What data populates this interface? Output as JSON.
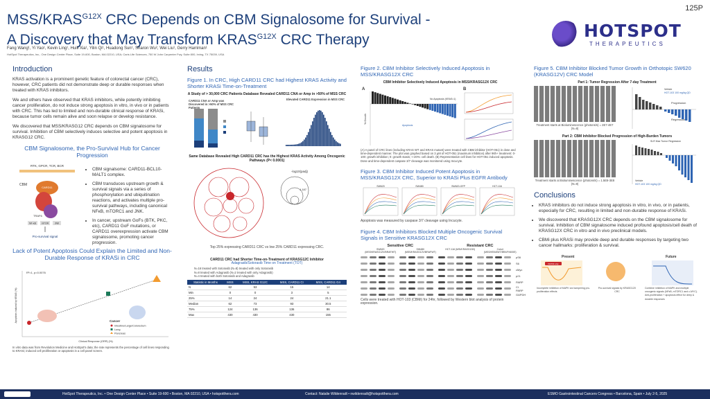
{
  "poster_id": "125P",
  "title": {
    "line1_a": "MSS/KRAS",
    "line1_sup": "G12X",
    "line1_b": " CRC Depends on CBM Signalosome for Survival -",
    "line2_a": "A Discovery that May Transform KRAS",
    "line2_sup": "G12X",
    "line2_b": " CRC Therapy"
  },
  "authors": "Fang Wang¹, Yi Yao¹, Kevin Ling¹, Huili Xia¹, Yilin Qi¹, Huadong Sun¹, Sharon Wu², Wei Liu¹, Gerry Harriman¹",
  "affiliation": "HotSpot Therapeutics, Inc., One Design Center Place, Suite 19-600, Boston, MA 02210, USA; Caris Life Sciences, 750 W John Carpenter Fwy, Suite 800, Irving, TX 75039, USA",
  "logo": {
    "word": "HOTSPOT",
    "sub": "THERAPEUTICS"
  },
  "intro": {
    "heading": "Introduction",
    "p1": "KRAS activation is a prominent genetic feature of colorectal cancer (CRC), however, CRC patients did not demonstrate deep or durable responses when treated with KRAS inhibitors.",
    "p2": "We and others have observed that KRAS inhibitors, while potently inhibiting cancer proliferation, do not induce strong apoptosis in vitro, in vivo or in patients with CRC. This has led to limited and non-durable clinical response of KRASi, because tumor cells remain alive and soon relapse or develop resistance.",
    "p3": "We discovered that MSS/KRASG12 CRC depends on CBM signalosome for survival. Inhibition of CBM selectively induces selective and potent apoptosis in KRASG12 CRC."
  },
  "cbm": {
    "heading": "CBM Signalosome, the Pro-Survival Hub for Cancer Progression",
    "receptors": "RTK, GPCR, TCR, BCR",
    "labels": [
      "CBM",
      "CARD11",
      "BCL10",
      "MALT1",
      "TRAF6",
      "NF-κB",
      "mTOR",
      "JNK"
    ],
    "footer": "Pro-survival signal",
    "bullets": [
      "CBM signalsome: CARD11-BCL10-MALT1 complex.",
      "CBM transduces upstream growth & survival signals via a series of phosphorylation and ubiquitination reactions, and activates multiple pro-survival pathways, including canonical NFκB, mTORC1 and JNK.",
      "In cancer, upstream GoFs (BTK, PKC, etc), CARD11 GoF mutations, or CARD11 overexpression activate CBM signalosome, promoting cancer progression."
    ]
  },
  "lack": {
    "heading": "Lack of Potent Apoptosis Could Explain the Limited and Non-Durable Response of KRASi in CRC",
    "stat": "R²=1, p=0.0076",
    "ylabel": "Apoptosis induced by KRASi (%)",
    "xlabel": "Clinical Response (ORR) (%)",
    "legend_title": "Cancer",
    "legend": [
      "Intestine/Large/Colorectum",
      "Lung",
      "Pancreas"
    ],
    "caption": "In vitro data was from Revolution Medicine and HotSpot's data; the rate represents the percentage of cell lines responding to KRASi; induced cell proliferation or apoptosis in a cell panel screen."
  },
  "results": {
    "heading": "Results",
    "fig1_title": "Figure 1. In CRC, High CARD11 CRC had Highest KRAS Activity and Shorter KRASi Time-on-Treatment",
    "fig1_panel_title": "A Study of > 30,000 CRC Patients Database Revealed CARD11 CNA or Amp in >50% of MSS CRC",
    "fig1_a": "CARD11 CNA or Amp was Discovered in >50% of MSS CRC Patients",
    "fig1_b": "Elevated CARD11 Expression in MSS CRC",
    "fig1_bubble_title": "Same Database Revealed High CARD11 CRC has the Highest KRAS Activity Among Oncogenic Pathways (P< 0.0001)",
    "bubble_label": "-log10(padj)",
    "bubble_values": [
      "4.187"
    ],
    "bubble_caption": "Top 25% expressing CARD11 CRC vs low 25% CARD11 expressing CRC.",
    "table_title": "CARD11 CRC had Shorter Time-on-Treatment of KRASG12C Inhibitor",
    "table_sub": "Adagrasib/Sotorasib Time on Treatment (TOT)",
    "table_notes": [
      "N=16 treated with Sotorasib (N=8) treated with only Sotorasib",
      "N=8 treated with Adagrasib (N=2 treated with only Adagrasib)",
      "N=4 treated with both Sotorasib and Adagrasib"
    ],
    "table_headers": [
      "Statistic in Months",
      "MSS",
      "MSS, KRAS G12C",
      "MSS, CARD11 CI",
      "MSS, CARD11 G4"
    ],
    "table_rows": [
      [
        "N",
        "62",
        "53",
        "15",
        "14"
      ],
      [
        "Min",
        "0",
        "0",
        "3",
        "5"
      ],
      [
        "25%",
        "14",
        "24",
        "24",
        "21.1"
      ],
      [
        "Median",
        "62",
        "73",
        "93",
        "30.5"
      ],
      [
        "75%",
        "124",
        "136",
        "136",
        "86"
      ],
      [
        "Max",
        "430",
        "430",
        "430",
        "155"
      ]
    ]
  },
  "fig2": {
    "title": "Figure 2. CBM Inhibitor Selectively Induced Apoptosis in MSS/KRASG12X CRC",
    "panel_title": "CBM Inhibitor Selectively Induced Apoptosis in MSS/KRASG12X CRC",
    "ylabel": "% Growth",
    "legend": [
      "No Apoptosis (KRAS=1)",
      "Apoptosis"
    ],
    "panel_a": "A",
    "panel_b": "B",
    "caption": "(A) A panel of CRC lines (including KRAS WT and KRAS mutant) were treated with CBM inhibitor (HOT-051) in dose and time-dependent manner. The plot was graphed based on 3 µM of HOT-051 (maximum inhibition) after 96h+ treatment: 0-100: growth inhibition; 0: growth stasis; <-20%: cell death. (B) Representative cell lines for HOT-051 induced apoptosis. Dose and time-dependent caspase 3/7 cleavage was monitored using Incucyte."
  },
  "fig3": {
    "title": "Figure 3. CBM Inhibitor Induced Potent Apoptosis in MSS/KRASG12X CRC, Superior to KRASi Plus EGFR Antibody",
    "cells": [
      "SW620",
      "SW480",
      "SW620-GFP",
      "HCT-116"
    ],
    "caption": "Apoptosis was measured by caspase 3/7 cleavage using Incucyte."
  },
  "fig4": {
    "title": "Figure 4. CBM Inhibitors Blocked Multiple Oncogenic Survival Signals in Sensitive KRASG12X CRC",
    "groups": [
      "Sensitive CRC",
      "Resistant CRC"
    ],
    "cell_lines": [
      "SW620 (MSS/KRASG12V/BRAFWT)",
      "SW480 (MSS/KRASG12V/BRAFWT)",
      "HCT-116 (MSI/KRASG13D)",
      "Colo4 (MSS/KRASWT/BRAFV600E)"
    ],
    "blots": [
      "pS6",
      "S6",
      "cMyc",
      "p21",
      "PARP",
      "Cl. PARP",
      "GAPDH"
    ],
    "caption": "Cells were treated with HOT-103 (CBMi) for 24hr, followed by Western blot analysis of protein expression."
  },
  "fig5": {
    "title": "Figure 5. CBM Inhibitor Blocked Tumor Growth in Orthotopic SW620 (KRASG12V) CRC Model",
    "part1": "Part 1: Tumor Regression After 7-day Treatment",
    "part1_legend": [
      "Vehicle",
      "HOT-103 100 mg/kg QD"
    ],
    "part1_labels": [
      "Progression",
      "Regression"
    ],
    "part1_ylabel": "Ratio of Bioluminescence Intensity (Day 8/Day 1)",
    "part1_caption": "Treatment starts at Bioluminescence (photons/s) = 2E7-4E7 (N=8)",
    "part2": "Part 2: CBM Inhibitor Blocked Progression of High-Burden Tumors",
    "part2_caption": "Treatment starts at Bioluminescence (photons/s) = 1.5E8-3E8 (N=9)",
    "part2_legend": [
      "Vehicle",
      "HOT-103 100 mg/kg QD"
    ],
    "part2_heading": "SLR Max Tumor Regression"
  },
  "conclusions": {
    "heading": "Conclusions",
    "bullets": [
      "KRAS inhibitors do not induce strong apoptosis in vitro, in vivo, or in patients, especially for CRC, resulting in limited and non-durable response of KRASi.",
      "We discovered that KRASG12X CRC depends on the CBM signalosome for survival. Inhibition of CBM signalosome induced profound apoptosis/cell death of KRASG12X CRC in vitro and in vivo preclinical models.",
      "CBMi plus KRASi may provide deep and durable responses by targeting two cancer hallmarks: proliferation & survival."
    ],
    "present": "Present",
    "future": "Future",
    "present_tag": "KRASi only",
    "present_caption": "Incomplete inhibition of MAPK via hampering pro-proliferation effects",
    "mid_caption": "Pro-survival signals by KRASG12X CRC",
    "future_caption": "Combine inhibition of MAPK and multiple oncogenic signals (NFκB, mTORC1 and c-MYC). Anti-proliferation + apoptosis effect for deep & durable responses"
  },
  "footer": {
    "left": "HotSpot Therapeutics, Inc. • One Design Center Place • Suite 19-600 • Boston, MA 02210, USA • hotspotthera.com",
    "mid": "Contact: Natalie Wildenradt • nwildenradt@hotspotthera.com",
    "right": "ESMO Gastrointestinal Cancers Congress • Barcelona, Spain • July 2-5, 2025"
  },
  "colors": {
    "navy": "#1c3f7a",
    "blue": "#2e64b3",
    "orange": "#f29b30",
    "red": "#c8262b"
  }
}
